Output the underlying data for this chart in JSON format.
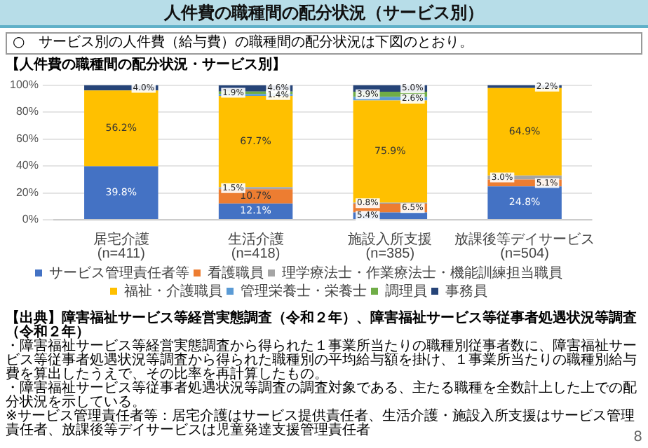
{
  "chart_data": {
    "type": "bar",
    "title": "人件費の職種間の配分状況（サービス別）",
    "subtitle": "○　サービス別の人件費（給与費）の職種間の配分状況は下図のとおり。",
    "categories": [
      "居宅介護(n=411)",
      "生活介護(n=418)",
      "施設入所支援(n=385)",
      "放課後等デイサービス(n=504)"
    ],
    "stacked": true,
    "series": [
      {
        "name": "サービス管理責任者等",
        "color": "#4472c4",
        "values": [
          39.8,
          12.1,
          5.4,
          24.8
        ],
        "value_labels": [
          "39.8%",
          "12.1%",
          "5.4%",
          "24.8%"
        ]
      },
      {
        "name": "看護職員",
        "color": "#ed7d31",
        "values": [
          null,
          10.7,
          6.5,
          5.1
        ],
        "value_labels": [
          null,
          "10.7%",
          "6.5%",
          "5.1%"
        ]
      },
      {
        "name": "理学療法士・作業療法士・機能訓練担当職員",
        "color": "#a5a5a5",
        "values": [
          null,
          1.5,
          0.8,
          3.0
        ],
        "value_labels": [
          null,
          "1.5%",
          "0.8%",
          "3.0%"
        ]
      },
      {
        "name": "福祉・介護職員",
        "color": "#ffc000",
        "values": [
          56.2,
          67.7,
          75.9,
          64.9
        ],
        "value_labels": [
          "56.2%",
          "67.7%",
          "75.9%",
          "64.9%"
        ]
      },
      {
        "name": "管理栄養士・栄養士",
        "color": "#5b9bd5",
        "values": [
          null,
          1.4,
          2.6,
          null
        ],
        "value_labels": [
          null,
          "1.4%",
          "2.6%",
          null
        ]
      },
      {
        "name": "調理員",
        "color": "#70ad47",
        "values": [
          null,
          1.9,
          3.9,
          null
        ],
        "value_labels": [
          null,
          "1.9%",
          "3.9%",
          null
        ]
      },
      {
        "name": "事務員",
        "color": "#264478",
        "values": [
          4.0,
          4.6,
          5.0,
          2.2
        ],
        "value_labels": [
          "4.0%",
          "4.6%",
          "5.0%",
          "2.2%"
        ]
      }
    ],
    "ylim": [
      0,
      100
    ],
    "yticks": [
      {
        "value": 0,
        "label": "0%"
      },
      {
        "value": 20,
        "label": "20%"
      },
      {
        "value": 40,
        "label": "40%"
      },
      {
        "value": 60,
        "label": "60%"
      },
      {
        "value": 80,
        "label": "80%"
      },
      {
        "value": 100,
        "label": "100%"
      }
    ],
    "grid": "y",
    "legend": "bottom",
    "annotations": [
      "【人件費の職種間の配分状況・サービス別】",
      "【出典】障害福祉サービス等経営実態調査（令和２年）、障害福祉サービス等従事者処遇状況等調査（令和２年）",
      "・障害福祉サービス等経営実態調査から得られた１事業所当たりの職種別従事者数に、障害福祉サービス等従事者処遇状況等調査から得られた職種別の平均給与額を掛け、１事業所当たりの職種別給与費を算出したうえで、その比率を再計算したもの。",
      "・障害福祉サービス等従事者処遇状況等調査の調査対象である、主たる職種を全数計上した上での配分状況を示している。",
      "※サービス管理責任者等：居宅介護はサービス提供責任者、生活介護・施設入所支援はサービス管理責任者、放課後等デイサービスは児童発達支援管理責任者",
      "8"
    ]
  }
}
